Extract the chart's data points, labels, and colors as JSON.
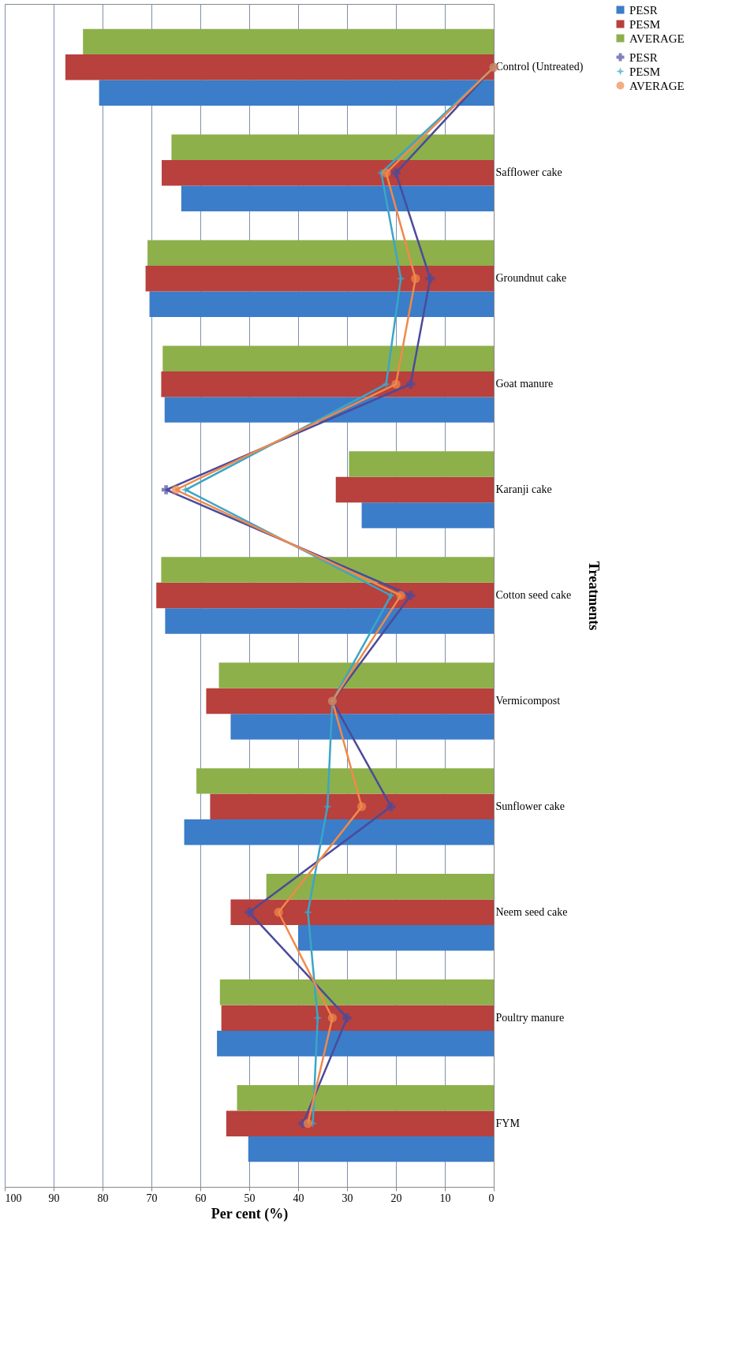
{
  "chart_data": {
    "type": "bar",
    "orientation": "horizontal",
    "xlabel": "Per cent (%)",
    "ylabel": "Treatments",
    "categories": [
      "Control (Untreated)",
      "Safflower cake",
      "Groundnut cake",
      "Goat manure",
      "Karanji cake",
      "Cotton seed cake",
      "Vermicompost",
      "Sunflower cake",
      "Neem seed cake",
      "Poultry manure",
      "FYM"
    ],
    "series": [
      {
        "name": "PESR",
        "type": "bar",
        "color": "#3b7dc8",
        "values": [
          80.7,
          63.9,
          70.4,
          67.3,
          27,
          67.2,
          53.8,
          63.3,
          40,
          56.6,
          50.2
        ]
      },
      {
        "name": "PESM",
        "type": "bar",
        "color": "#b8403d",
        "values": [
          87.6,
          67.9,
          71.2,
          68,
          32.3,
          69,
          58.8,
          58,
          53.8,
          55.7,
          54.7
        ]
      },
      {
        "name": "AVERAGE",
        "type": "bar",
        "color": "#8db04a",
        "values": [
          84,
          65.9,
          70.8,
          67.7,
          29.6,
          68,
          56.2,
          60.8,
          46.5,
          56,
          52.5
        ]
      },
      {
        "name": "PESR",
        "type": "line",
        "marker": "cross",
        "color": "#4b4a9c",
        "values": [
          0,
          20,
          13,
          17,
          67,
          17,
          33,
          21,
          50,
          30,
          39
        ]
      },
      {
        "name": "PESM",
        "type": "line",
        "marker": "star",
        "color": "#3aa6c8",
        "values": [
          0,
          23,
          19,
          22,
          63,
          21,
          33,
          34,
          38,
          36,
          37
        ]
      },
      {
        "name": "AVERAGE",
        "type": "line",
        "marker": "circle",
        "color": "#f0894a",
        "values": [
          0,
          22,
          16,
          20,
          65,
          19,
          33,
          27,
          44,
          33,
          38
        ]
      }
    ],
    "xlim": [
      100,
      0
    ],
    "xticks": [
      0,
      10,
      20,
      30,
      40,
      50,
      60,
      70,
      80,
      90,
      100
    ],
    "grid": "x",
    "legend": "right"
  }
}
